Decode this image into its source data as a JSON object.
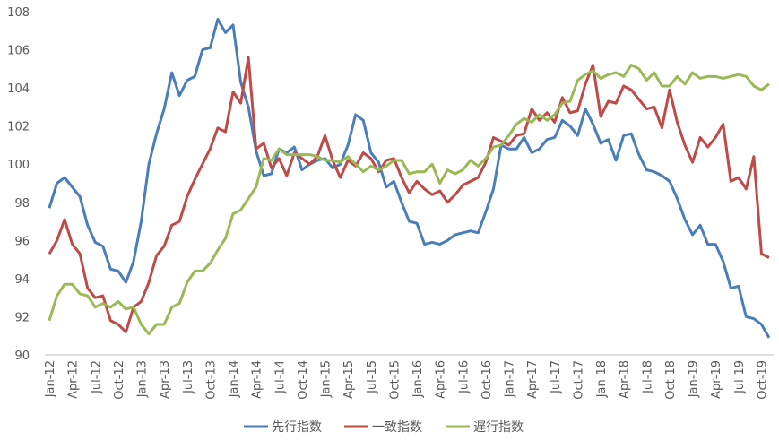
{
  "chart_data": {
    "type": "line",
    "categories": [
      "Jan-12",
      null,
      null,
      "Apr-12",
      null,
      null,
      "Jul-12",
      null,
      null,
      "Oct-12",
      null,
      null,
      "Jan-13",
      null,
      null,
      "Apr-13",
      null,
      null,
      "Jul-13",
      null,
      null,
      "Oct-13",
      null,
      null,
      "Jan-14",
      null,
      null,
      "Apr-14",
      null,
      null,
      "Jul-14",
      null,
      null,
      "Oct-14",
      null,
      null,
      "Jan-15",
      null,
      null,
      "Apr-15",
      null,
      null,
      "Jul-15",
      null,
      null,
      "Oct-15",
      null,
      null,
      "Jan-16",
      null,
      null,
      "Apr-16",
      null,
      null,
      "Jul-16",
      null,
      null,
      "Oct-16",
      null,
      null,
      "Jan-17",
      null,
      null,
      "Apr-17",
      null,
      null,
      "Jul-17",
      null,
      null,
      "Oct-17",
      null,
      null,
      "Jan-18",
      null,
      null,
      "Apr-18",
      null,
      null,
      "Jul-18",
      null,
      null,
      "Oct-18",
      null,
      null,
      "Jan-19",
      null,
      null,
      "Apr-19",
      null,
      null,
      "Jul-19",
      null,
      null,
      "Oct-19",
      null
    ],
    "series": [
      {
        "name": "先行指数",
        "color": "#4a7ebb",
        "values": [
          97.7,
          99.0,
          99.3,
          98.8,
          98.3,
          96.8,
          95.9,
          95.7,
          94.5,
          94.4,
          93.8,
          94.9,
          97.0,
          100.0,
          101.6,
          102.9,
          104.8,
          103.6,
          104.4,
          104.6,
          106.0,
          106.1,
          107.6,
          106.9,
          107.3,
          104.3,
          103.0,
          100.7,
          99.4,
          99.5,
          100.8,
          100.6,
          100.9,
          99.7,
          100.0,
          100.2,
          100.3,
          99.8,
          100.0,
          101.0,
          102.6,
          102.3,
          100.6,
          100.1,
          98.8,
          99.1,
          98.0,
          97.0,
          96.9,
          95.8,
          95.9,
          95.8,
          96.0,
          96.3,
          96.4,
          96.5,
          96.4,
          97.5,
          98.7,
          101.0,
          100.8,
          100.8,
          101.4,
          100.6,
          100.8,
          101.3,
          101.4,
          102.3,
          102.0,
          101.5,
          102.9,
          102.1,
          101.1,
          101.3,
          100.2,
          101.5,
          101.6,
          100.5,
          99.7,
          99.6,
          99.4,
          99.1,
          98.2,
          97.1,
          96.3,
          96.8,
          95.8,
          95.8,
          94.9,
          93.5,
          93.6,
          92.0,
          91.9,
          91.6,
          90.9
        ]
      },
      {
        "name": "一致指数",
        "color": "#be4b48",
        "values": [
          95.3,
          96.0,
          97.1,
          95.8,
          95.3,
          93.5,
          93.0,
          93.1,
          91.8,
          91.6,
          91.2,
          92.5,
          92.8,
          93.8,
          95.2,
          95.7,
          96.8,
          97.0,
          98.3,
          99.2,
          100.0,
          100.8,
          101.9,
          101.7,
          103.8,
          103.2,
          105.6,
          100.8,
          101.1,
          99.8,
          100.3,
          99.4,
          100.6,
          100.3,
          100.0,
          100.4,
          101.5,
          100.2,
          99.3,
          100.2,
          99.9,
          100.6,
          100.3,
          99.6,
          100.2,
          100.3,
          99.3,
          98.5,
          99.1,
          98.7,
          98.4,
          98.6,
          98.0,
          98.4,
          98.9,
          99.1,
          99.3,
          100.1,
          101.4,
          101.2,
          101.0,
          101.5,
          101.6,
          102.9,
          102.3,
          102.7,
          102.2,
          103.5,
          102.7,
          102.8,
          104.2,
          105.2,
          102.5,
          103.3,
          103.2,
          104.1,
          103.9,
          103.4,
          102.9,
          103.0,
          101.9,
          103.9,
          102.2,
          101.0,
          100.1,
          101.4,
          100.9,
          101.4,
          102.1,
          99.1,
          99.3,
          98.7,
          100.4,
          95.3,
          95.1
        ]
      },
      {
        "name": "遅行指数",
        "color": "#98b954",
        "values": [
          91.8,
          93.1,
          93.7,
          93.7,
          93.2,
          93.1,
          92.5,
          92.7,
          92.5,
          92.8,
          92.4,
          92.5,
          91.6,
          91.1,
          91.6,
          91.6,
          92.5,
          92.7,
          93.8,
          94.4,
          94.4,
          94.8,
          95.5,
          96.1,
          97.4,
          97.6,
          98.2,
          98.8,
          100.3,
          100.2,
          100.8,
          100.5,
          100.5,
          100.5,
          100.5,
          100.4,
          100.2,
          100.2,
          100.1,
          100.4,
          100.0,
          99.6,
          99.9,
          99.7,
          99.9,
          100.2,
          100.2,
          99.5,
          99.6,
          99.6,
          100.0,
          99.0,
          99.7,
          99.5,
          99.7,
          100.2,
          99.9,
          100.3,
          100.9,
          101.0,
          101.5,
          102.1,
          102.4,
          102.2,
          102.6,
          102.3,
          102.6,
          103.2,
          103.3,
          104.4,
          104.7,
          104.9,
          104.5,
          104.7,
          104.8,
          104.6,
          105.2,
          105.0,
          104.4,
          104.8,
          104.1,
          104.1,
          104.6,
          104.2,
          104.8,
          104.5,
          104.6,
          104.6,
          104.5,
          104.6,
          104.7,
          104.6,
          104.1,
          103.9,
          104.2
        ]
      }
    ],
    "ylim": [
      90,
      108
    ],
    "yticks": [
      90,
      92,
      94,
      96,
      98,
      100,
      102,
      104,
      106,
      108
    ],
    "grid": false,
    "legend": "bottom"
  }
}
